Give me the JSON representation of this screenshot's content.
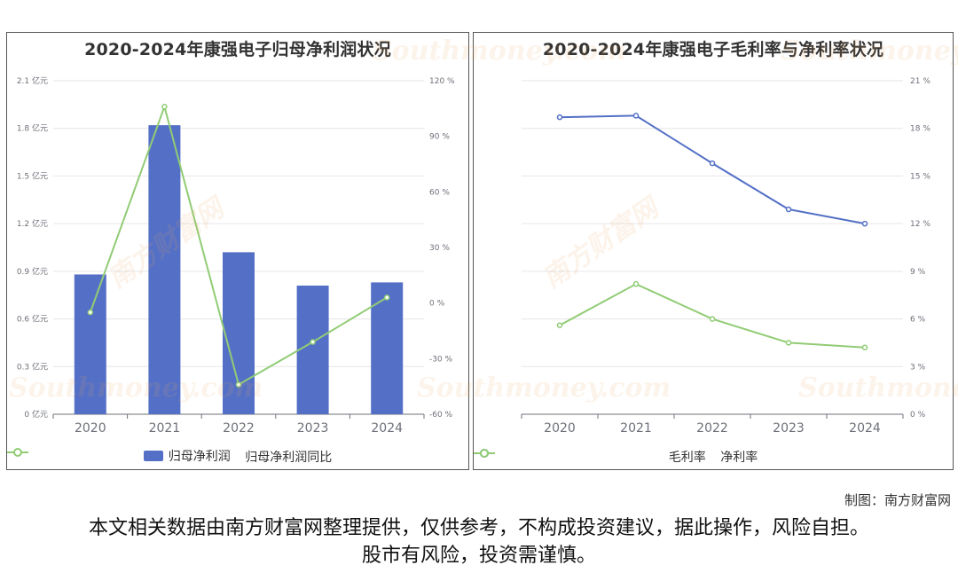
{
  "footer": {
    "credit": "制图：南方财富网",
    "disclaimer": "本文相关数据由南方财富网整理提供，仅供参考，不构成投资建议，据此操作，风险自担。股市有风险，投资需谨慎。"
  },
  "watermark": {
    "cn": "南方财富网",
    "en": "Southmoney.com"
  },
  "colors": {
    "bar": "#5470c6",
    "line_green": "#91cc75",
    "line_blue": "#5470c6",
    "grid": "#e6e6e6",
    "axis_text": "#6e7079"
  },
  "chart_data": [
    {
      "type": "bar",
      "title": "2020-2024年康强电子归母净利润状况",
      "categories": [
        "2020",
        "2021",
        "2022",
        "2023",
        "2024"
      ],
      "series": [
        {
          "name": "归母净利润",
          "type": "bar",
          "axis": "left",
          "values": [
            0.88,
            1.82,
            1.02,
            0.81,
            0.83
          ]
        },
        {
          "name": "归母净利润同比",
          "type": "line",
          "axis": "right",
          "values": [
            -5,
            106,
            -44,
            -21,
            3
          ]
        }
      ],
      "yleft": {
        "ticks": [
          "0 亿元",
          "0.3 亿元",
          "0.6 亿元",
          "0.9 亿元",
          "1.2 亿元",
          "1.5 亿元",
          "1.8 亿元",
          "2.1 亿元"
        ],
        "ylim": [
          0,
          2.1
        ]
      },
      "yright": {
        "ticks": [
          "-60 %",
          "-30 %",
          "0 %",
          "30 %",
          "60 %",
          "90 %",
          "120 %"
        ],
        "ylim": [
          -60,
          120
        ]
      },
      "legend": "bottom"
    },
    {
      "type": "line",
      "title": "2020-2024年康强电子毛利率与净利率状况",
      "categories": [
        "2020",
        "2021",
        "2022",
        "2023",
        "2024"
      ],
      "series": [
        {
          "name": "毛利率",
          "values": [
            18.7,
            18.8,
            15.8,
            12.9,
            12.0
          ]
        },
        {
          "name": "净利率",
          "values": [
            5.6,
            8.2,
            6.0,
            4.5,
            4.2
          ]
        }
      ],
      "yright": {
        "ticks": [
          "0 %",
          "3 %",
          "6 %",
          "9 %",
          "12 %",
          "15 %",
          "18 %",
          "21 %"
        ],
        "ylim": [
          0,
          21
        ]
      },
      "legend": "bottom"
    }
  ]
}
